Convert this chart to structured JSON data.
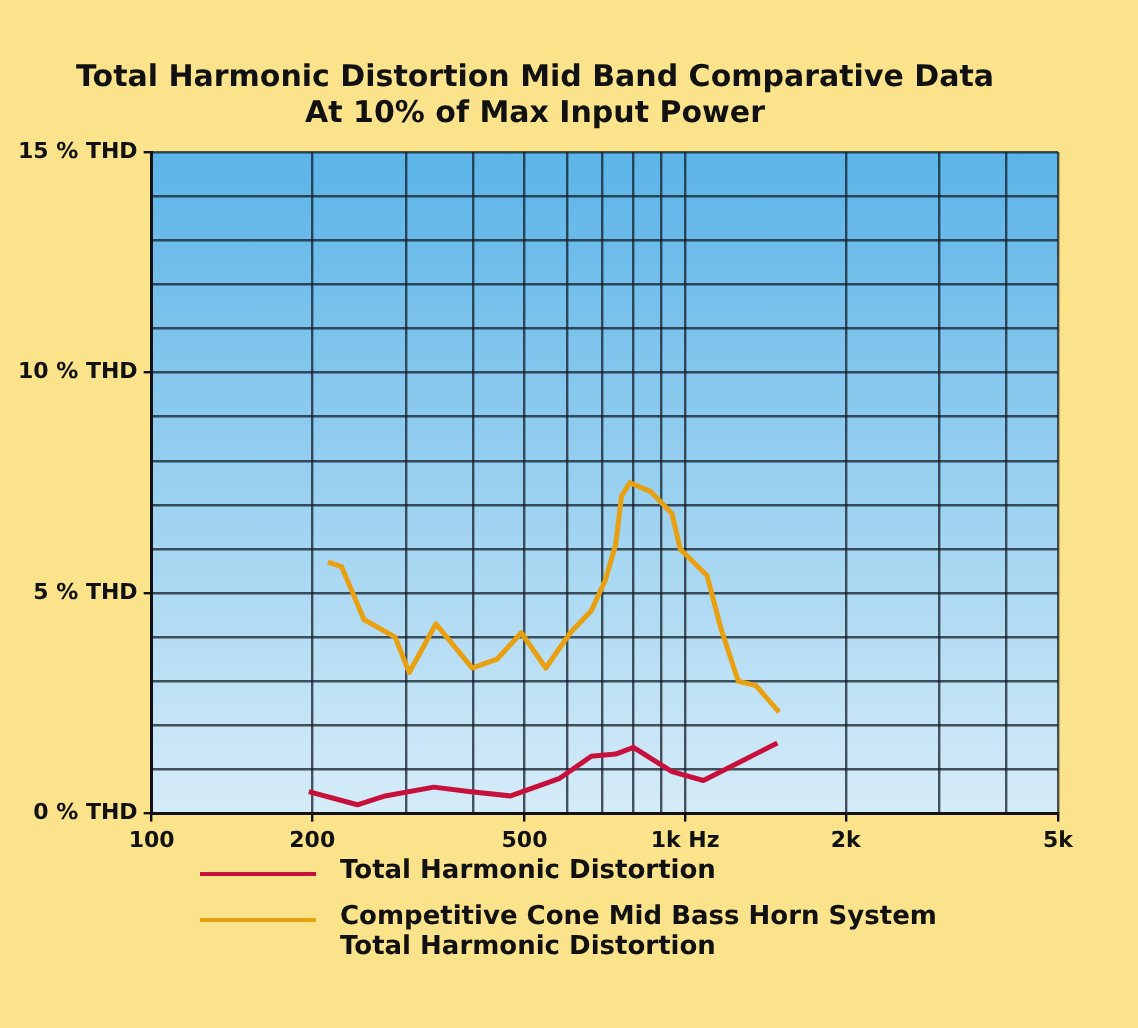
{
  "chart_data": {
    "type": "line",
    "title": "Total Harmonic Distortion Mid Band Comparative Data\nAt 10% of Max Input Power",
    "log": "x",
    "grid": true,
    "legend": "bottom",
    "marker": "none",
    "line_style": "solid",
    "xlim": [
      100,
      5000
    ],
    "xticks": [
      100,
      {
        "value": 200,
        "label": "200"
      },
      {
        "value": 300,
        "label": null
      },
      {
        "value": 400,
        "label": null
      },
      500,
      {
        "value": 600,
        "label": null
      },
      {
        "value": 700,
        "label": null
      },
      {
        "value": 800,
        "label": null
      },
      {
        "value": 900,
        "label": null
      },
      {
        "value": 1000,
        "label": "1k Hz"
      },
      {
        "value": 2000,
        "label": "2k"
      },
      {
        "value": 3000,
        "label": null
      },
      {
        "value": 4000,
        "label": null
      },
      {
        "value": 5000,
        "label": "5k"
      }
    ],
    "ylim": [
      0,
      15
    ],
    "yticks": [
      {
        "value": 0,
        "label": "0 % THD"
      },
      {
        "value": 1,
        "label": null
      },
      {
        "value": 2,
        "label": null
      },
      {
        "value": 3,
        "label": null
      },
      {
        "value": 4,
        "label": null
      },
      {
        "value": 5,
        "label": "5 % THD"
      },
      {
        "value": 6,
        "label": null
      },
      {
        "value": 7,
        "label": null
      },
      {
        "value": 8,
        "label": null
      },
      {
        "value": 9,
        "label": null
      },
      {
        "value": 10,
        "label": "10 % THD"
      },
      {
        "value": 11,
        "label": null
      },
      {
        "value": 12,
        "label": null
      },
      {
        "value": 13,
        "label": null
      },
      {
        "value": 14,
        "label": null
      },
      {
        "value": 15,
        "label": "15 % THD"
      }
    ],
    "series": [
      {
        "name": "Total Harmonic Distortion",
        "color": "#c8103c",
        "x": [
          197,
          243,
          274,
          338,
          393,
          471,
          582,
          667,
          741,
          800,
          945,
          1082,
          1489
        ],
        "values": [
          0.5,
          0.2,
          0.4,
          0.6,
          0.5,
          0.4,
          0.8,
          1.3,
          1.35,
          1.5,
          0.95,
          0.75,
          1.6
        ]
      },
      {
        "name": "Competitive Cone Mid Bass Horn System Total Harmonic Distortion",
        "color": "#e8a010",
        "x": [
          214,
          227,
          250,
          286,
          304,
          341,
          399,
          444,
          493,
          548,
          609,
          667,
          709,
          741,
          760,
          788,
          862,
          945,
          979,
          1099,
          1167,
          1258,
          1358,
          1500
        ],
        "values": [
          5.7,
          5.6,
          4.4,
          4.0,
          3.2,
          4.3,
          3.3,
          3.5,
          4.1,
          3.3,
          4.1,
          4.6,
          5.3,
          6.1,
          7.2,
          7.5,
          7.3,
          6.8,
          6.0,
          5.4,
          4.2,
          3.0,
          2.9,
          2.3
        ]
      }
    ]
  }
}
